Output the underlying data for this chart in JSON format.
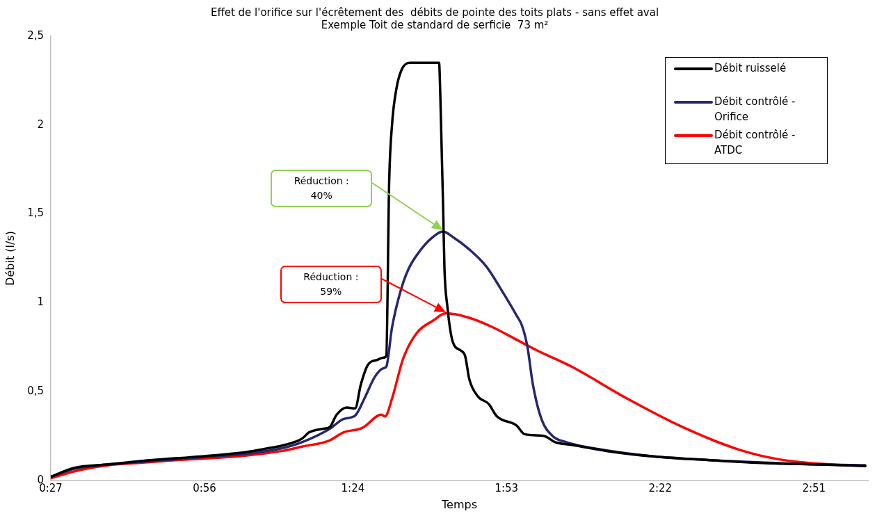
{
  "chart_data": {
    "type": "line",
    "title": "Effet de l'orifice sur l'écrêtement des  débits de pointe des toits plats - sans effet aval",
    "subtitle": "Exemple Toit de standard de serficie  73 m²",
    "xlabel": "Temps",
    "ylabel": "Débit (l/s)",
    "xlim": [
      0.45,
      3.02
    ],
    "xticks": [
      {
        "value": 0.45,
        "label": "0:27"
      },
      {
        "value": 0.9333,
        "label": "0:56"
      },
      {
        "value": 1.4,
        "label": "1:24"
      },
      {
        "value": 1.8833,
        "label": "1:53"
      },
      {
        "value": 2.3667,
        "label": "2:22"
      },
      {
        "value": 2.85,
        "label": "2:51"
      }
    ],
    "ylim": [
      0,
      2.5
    ],
    "yticks": [
      {
        "value": 0,
        "label": "0"
      },
      {
        "value": 0.5,
        "label": "0,5"
      },
      {
        "value": 1,
        "label": "1"
      },
      {
        "value": 1.5,
        "label": "1,5"
      },
      {
        "value": 2,
        "label": "2"
      },
      {
        "value": 2.5,
        "label": "2,5"
      }
    ],
    "grid": false,
    "legend": "top right",
    "marker": "none",
    "annotations": [
      "Réduction :\n40%",
      "Réduction :\n59%"
    ],
    "series": [
      {
        "name": "Débit ruisselé",
        "color": "#000000",
        "x": [
          0.45,
          0.522,
          0.631,
          0.739,
          0.848,
          0.957,
          1.066,
          1.131,
          1.175,
          1.24,
          1.262,
          1.305,
          1.327,
          1.349,
          1.381,
          1.407,
          1.425,
          1.447,
          1.479,
          1.494,
          1.505,
          1.514,
          1.523,
          1.536,
          1.553,
          1.579,
          1.671,
          1.675,
          1.684,
          1.688,
          1.697,
          1.714,
          1.74,
          1.753,
          1.766,
          1.792,
          1.827,
          1.853,
          1.914,
          1.94,
          2.001,
          2.036,
          2.088,
          2.219,
          2.35,
          2.524,
          2.698,
          2.872,
          3.011
        ],
        "values": [
          0.02,
          0.07,
          0.09,
          0.11,
          0.125,
          0.14,
          0.16,
          0.18,
          0.195,
          0.235,
          0.27,
          0.29,
          0.3,
          0.37,
          0.41,
          0.405,
          0.54,
          0.65,
          0.68,
          0.69,
          0.7,
          1.676,
          2.0,
          2.196,
          2.31,
          2.35,
          2.35,
          2.16,
          1.51,
          1.19,
          0.98,
          0.78,
          0.73,
          0.7,
          0.57,
          0.475,
          0.43,
          0.36,
          0.31,
          0.26,
          0.25,
          0.215,
          0.2,
          0.16,
          0.134,
          0.114,
          0.097,
          0.089,
          0.081
        ]
      },
      {
        "name": "Débit contrôlé - Orifice",
        "color": "#27276f",
        "x": [
          0.45,
          0.522,
          0.631,
          0.739,
          0.848,
          0.957,
          1.066,
          1.175,
          1.24,
          1.327,
          1.37,
          1.407,
          1.436,
          1.468,
          1.494,
          1.505,
          1.523,
          1.549,
          1.575,
          1.61,
          1.645,
          1.684,
          1.714,
          1.766,
          1.819,
          1.871,
          1.914,
          1.932,
          1.949,
          1.966,
          1.993,
          2.028,
          2.071,
          2.175,
          2.35,
          2.524,
          2.698,
          2.872,
          3.011
        ],
        "values": [
          0.02,
          0.065,
          0.09,
          0.105,
          0.12,
          0.135,
          0.15,
          0.18,
          0.215,
          0.29,
          0.345,
          0.365,
          0.46,
          0.58,
          0.63,
          0.64,
          0.86,
          1.06,
          1.19,
          1.29,
          1.36,
          1.4,
          1.37,
          1.3,
          1.205,
          1.06,
          0.93,
          0.87,
          0.75,
          0.54,
          0.345,
          0.25,
          0.215,
          0.175,
          0.134,
          0.114,
          0.1,
          0.089,
          0.085
        ]
      },
      {
        "name": "Débit contrôlé - ATDC",
        "color": "#ff0000",
        "x": [
          0.45,
          0.522,
          0.631,
          0.739,
          0.848,
          0.957,
          1.066,
          1.175,
          1.24,
          1.327,
          1.37,
          1.429,
          1.49,
          1.501,
          1.523,
          1.558,
          1.601,
          1.653,
          1.692,
          1.766,
          1.836,
          1.906,
          1.975,
          2.088,
          2.263,
          2.437,
          2.611,
          2.741,
          2.872,
          3.011
        ],
        "values": [
          0.012,
          0.05,
          0.085,
          0.1,
          0.115,
          0.125,
          0.14,
          0.165,
          0.19,
          0.225,
          0.27,
          0.295,
          0.37,
          0.36,
          0.46,
          0.685,
          0.83,
          0.9,
          0.94,
          0.915,
          0.865,
          0.8,
          0.735,
          0.64,
          0.46,
          0.3,
          0.175,
          0.118,
          0.093,
          0.081
        ]
      }
    ]
  }
}
